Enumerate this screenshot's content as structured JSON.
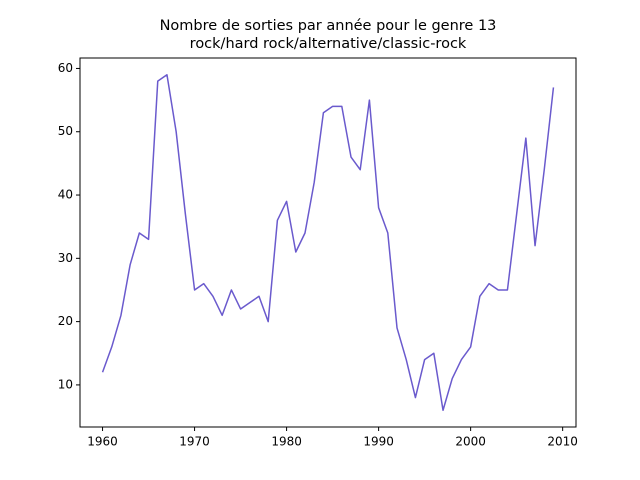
{
  "chart_data": {
    "type": "line",
    "title": [
      "Nombre de sorties par année pour le genre 13",
      "rock/hard rock/alternative/classic-rock"
    ],
    "x": [
      1960,
      1961,
      1962,
      1963,
      1964,
      1965,
      1966,
      1967,
      1968,
      1969,
      1970,
      1971,
      1972,
      1973,
      1974,
      1975,
      1976,
      1977,
      1978,
      1979,
      1980,
      1981,
      1982,
      1983,
      1984,
      1985,
      1986,
      1987,
      1988,
      1989,
      1990,
      1991,
      1992,
      1993,
      1994,
      1995,
      1996,
      1997,
      1998,
      1999,
      2000,
      2001,
      2002,
      2003,
      2004,
      2005,
      2006,
      2007,
      2008,
      2009
    ],
    "series": [
      {
        "color": "#6a5acd",
        "values": [
          12,
          16,
          21,
          29,
          34,
          33,
          58,
          59,
          50,
          37,
          25,
          26,
          24,
          21,
          25,
          22,
          23,
          24,
          20,
          36,
          39,
          31,
          34,
          42,
          53,
          54,
          54,
          46,
          44,
          55,
          38,
          34,
          19,
          14,
          8,
          14,
          15,
          6,
          11,
          14,
          16,
          24,
          26,
          25,
          25,
          37,
          49,
          32,
          44,
          57
        ]
      }
    ],
    "xlim": [
      1957.55,
      2011.45
    ],
    "xticks": [
      1960,
      1970,
      1980,
      1990,
      2000,
      2010
    ],
    "ylim": [
      3.35,
      61.65
    ],
    "yticks": [
      10,
      20,
      30,
      40,
      50,
      60
    ]
  }
}
